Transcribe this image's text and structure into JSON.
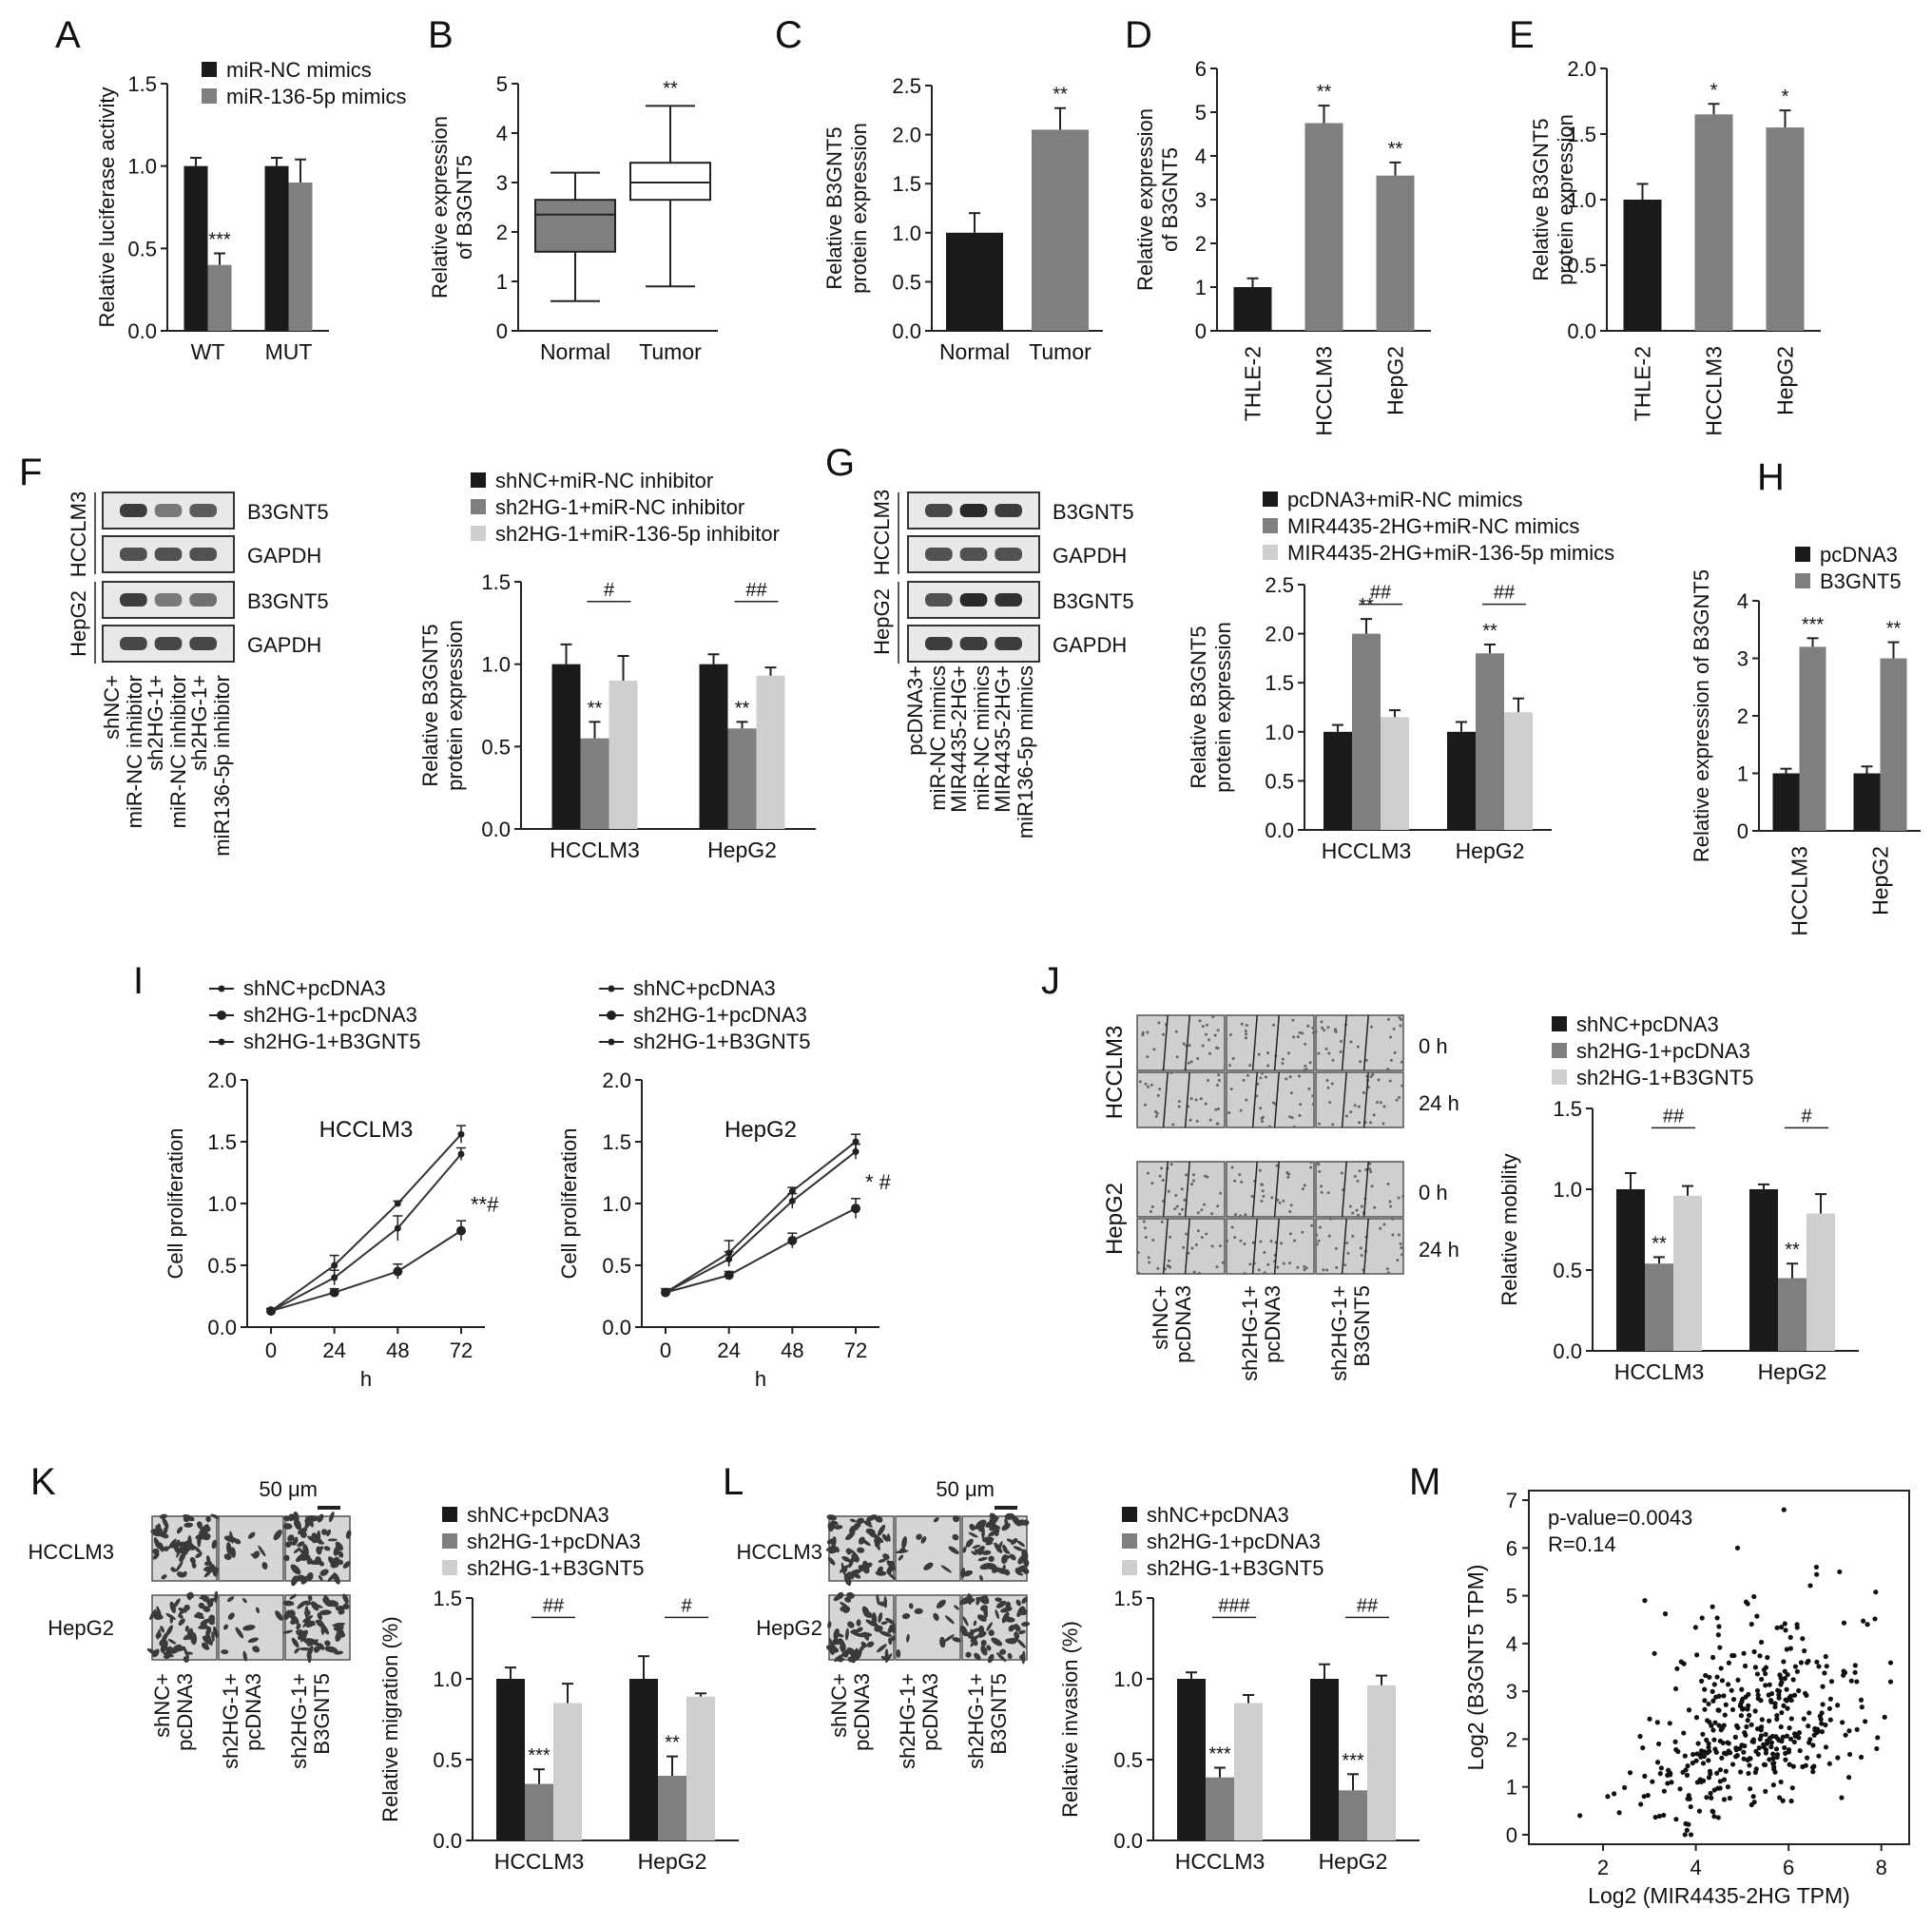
{
  "colors": {
    "dark": "#1a1a1a",
    "mid": "#7f7f7f",
    "light": "#cfcfcf",
    "box_normal": "#7f7f7f",
    "box_tumor": "#ffffff"
  },
  "chart_data": [
    {
      "panel": "A",
      "type": "bar",
      "categories": [
        "WT",
        "MUT"
      ],
      "series": [
        {
          "name": "miR-NC mimics",
          "values": [
            1.0,
            1.0
          ],
          "err": [
            0.05,
            0.05
          ]
        },
        {
          "name": "miR-136-5p mimics",
          "values": [
            0.4,
            0.9
          ],
          "err": [
            0.07,
            0.14
          ]
        }
      ],
      "ylabel": "Relative luciferase activity",
      "ylim": [
        0,
        1.5
      ],
      "yticks": [
        0.0,
        0.5,
        1.0,
        1.5
      ],
      "annotations": [
        {
          "cat": 0,
          "series": 1,
          "text": "***"
        }
      ]
    },
    {
      "panel": "B",
      "type": "box",
      "categories": [
        "Normal",
        "Tumor"
      ],
      "boxes": [
        {
          "min": 0.6,
          "q1": 1.6,
          "median": 2.35,
          "q3": 2.65,
          "max": 3.2
        },
        {
          "min": 0.9,
          "q1": 2.65,
          "median": 3.0,
          "q3": 3.4,
          "max": 4.55
        }
      ],
      "ylabel": "Relative expression of B3GNT5",
      "ylim": [
        0,
        5
      ],
      "yticks": [
        0,
        1,
        2,
        3,
        4,
        5
      ],
      "annotations": [
        {
          "cat": 1,
          "text": "**"
        }
      ]
    },
    {
      "panel": "C",
      "type": "bar",
      "categories": [
        "Normal",
        "Tumor"
      ],
      "values": [
        1.0,
        2.05
      ],
      "err": [
        0.2,
        0.22
      ],
      "ylabel": "Relative B3GNT5 protein expression",
      "ylim": [
        0,
        2.5
      ],
      "yticks": [
        0.0,
        0.5,
        1.0,
        1.5,
        2.0,
        2.5
      ],
      "annotations": [
        {
          "cat": 1,
          "text": "**"
        }
      ]
    },
    {
      "panel": "D",
      "type": "bar",
      "categories": [
        "THLE-2",
        "HCCLM3",
        "HepG2"
      ],
      "values": [
        1.0,
        4.75,
        3.55
      ],
      "err": [
        0.2,
        0.4,
        0.3
      ],
      "ylabel": "Relative expression of B3GNT5",
      "ylim": [
        0,
        6
      ],
      "yticks": [
        0,
        1,
        2,
        3,
        4,
        5,
        6
      ],
      "annotations": [
        {
          "cat": 1,
          "text": "**"
        },
        {
          "cat": 2,
          "text": "**"
        }
      ]
    },
    {
      "panel": "E",
      "type": "bar",
      "categories": [
        "THLE-2",
        "HCCLM3",
        "HepG2"
      ],
      "values": [
        1.0,
        1.65,
        1.55
      ],
      "err": [
        0.12,
        0.08,
        0.13
      ],
      "ylabel": "Relative B3GNT5 protein expression",
      "ylim": [
        0,
        2.0
      ],
      "yticks": [
        0.0,
        0.5,
        1.0,
        1.5,
        2.0
      ],
      "annotations": [
        {
          "cat": 1,
          "text": "*"
        },
        {
          "cat": 2,
          "text": "*"
        }
      ]
    },
    {
      "panel": "F",
      "type": "bar",
      "categories": [
        "HCCLM3",
        "HepG2"
      ],
      "series": [
        {
          "name": "shNC+miR-NC inhibitor",
          "values": [
            1.0,
            1.0
          ],
          "err": [
            0.12,
            0.06
          ]
        },
        {
          "name": "sh2HG-1+miR-NC inhibitor",
          "values": [
            0.55,
            0.61
          ],
          "err": [
            0.1,
            0.04
          ]
        },
        {
          "name": "sh2HG-1+miR-136-5p inhibitor",
          "values": [
            0.9,
            0.93
          ],
          "err": [
            0.15,
            0.05
          ]
        }
      ],
      "ylabel": "Relative B3GNT5 protein expression",
      "ylim": [
        0,
        1.5
      ],
      "yticks": [
        0.0,
        0.5,
        1.0,
        1.5
      ],
      "annotations": [
        {
          "cat": 0,
          "series": 1,
          "text": "**"
        },
        {
          "cat": 1,
          "series": 1,
          "text": "**"
        },
        {
          "cat": 0,
          "bracket": [
            1,
            2
          ],
          "text": "#"
        },
        {
          "cat": 1,
          "bracket": [
            1,
            2
          ],
          "text": "##"
        }
      ]
    },
    {
      "panel": "G",
      "type": "bar",
      "categories": [
        "HCCLM3",
        "HepG2"
      ],
      "series": [
        {
          "name": "pcDNA3+miR-NC mimics",
          "values": [
            1.0,
            1.0
          ],
          "err": [
            0.07,
            0.1
          ]
        },
        {
          "name": "MIR4435-2HG+miR-NC mimics",
          "values": [
            2.0,
            1.8
          ],
          "err": [
            0.15,
            0.09
          ]
        },
        {
          "name": "MIR4435-2HG+miR-136-5p mimics",
          "values": [
            1.15,
            1.2
          ],
          "err": [
            0.07,
            0.14
          ]
        }
      ],
      "ylabel": "Relative B3GNT5 protein expression",
      "ylim": [
        0,
        2.5
      ],
      "yticks": [
        0.0,
        0.5,
        1.0,
        1.5,
        2.0,
        2.5
      ],
      "annotations": [
        {
          "cat": 0,
          "series": 1,
          "text": "**"
        },
        {
          "cat": 1,
          "series": 1,
          "text": "**"
        },
        {
          "cat": 0,
          "bracket": [
            1,
            2
          ],
          "text": "##"
        },
        {
          "cat": 1,
          "bracket": [
            1,
            2
          ],
          "text": "##"
        }
      ]
    },
    {
      "panel": "H",
      "type": "bar",
      "categories": [
        "HCCLM3",
        "HepG2"
      ],
      "series": [
        {
          "name": "pcDNA3",
          "values": [
            1.0,
            1.0
          ],
          "err": [
            0.08,
            0.12
          ]
        },
        {
          "name": "B3GNT5",
          "values": [
            3.2,
            3.0
          ],
          "err": [
            0.15,
            0.28
          ]
        }
      ],
      "ylabel": "Relative expression of B3GNT5",
      "ylim": [
        0,
        4
      ],
      "yticks": [
        0,
        1,
        2,
        3,
        4
      ],
      "annotations": [
        {
          "cat": 0,
          "series": 1,
          "text": "***"
        },
        {
          "cat": 1,
          "series": 1,
          "text": "**"
        }
      ]
    },
    {
      "panel": "I1",
      "type": "line",
      "title": "HCCLM3",
      "x": [
        0,
        24,
        48,
        72
      ],
      "series": [
        {
          "name": "shNC+pcDNA3",
          "values": [
            0.13,
            0.5,
            1.0,
            1.56
          ],
          "err": [
            0.02,
            0.08,
            0.02,
            0.07
          ]
        },
        {
          "name": "sh2HG-1+pcDNA3",
          "values": [
            0.13,
            0.28,
            0.45,
            0.78
          ],
          "err": [
            0.02,
            0.03,
            0.06,
            0.08
          ]
        },
        {
          "name": "sh2HG-1+B3GNT5",
          "values": [
            0.13,
            0.4,
            0.8,
            1.4
          ],
          "err": [
            0.02,
            0.06,
            0.1,
            0.05
          ]
        }
      ],
      "xlabel": "h",
      "ylabel": "Cell proliferation",
      "ylim": [
        0,
        2.0
      ],
      "yticks": [
        0.0,
        0.5,
        1.0,
        1.5,
        2.0
      ],
      "annotations": [
        {
          "text": "**#"
        }
      ]
    },
    {
      "panel": "I2",
      "type": "line",
      "title": "HepG2",
      "x": [
        0,
        24,
        48,
        72
      ],
      "series": [
        {
          "name": "shNC+pcDNA3",
          "values": [
            0.28,
            0.6,
            1.1,
            1.5
          ],
          "err": [
            0.03,
            0.1,
            0.03,
            0.06
          ]
        },
        {
          "name": "sh2HG-1+pcDNA3",
          "values": [
            0.28,
            0.42,
            0.7,
            0.96
          ],
          "err": [
            0.03,
            0.03,
            0.06,
            0.08
          ]
        },
        {
          "name": "sh2HG-1+B3GNT5",
          "values": [
            0.28,
            0.55,
            1.02,
            1.42
          ],
          "err": [
            0.03,
            0.06,
            0.06,
            0.06
          ]
        }
      ],
      "xlabel": "h",
      "ylabel": "Cell proliferation",
      "ylim": [
        0,
        2.0
      ],
      "yticks": [
        0.0,
        0.5,
        1.0,
        1.5,
        2.0
      ],
      "annotations": [
        {
          "text": "* #"
        }
      ]
    },
    {
      "panel": "J",
      "type": "bar",
      "categories": [
        "HCCLM3",
        "HepG2"
      ],
      "series": [
        {
          "name": "shNC+pcDNA3",
          "values": [
            1.0,
            1.0
          ],
          "err": [
            0.1,
            0.03
          ]
        },
        {
          "name": "sh2HG-1+pcDNA3",
          "values": [
            0.54,
            0.45
          ],
          "err": [
            0.04,
            0.09
          ]
        },
        {
          "name": "sh2HG-1+B3GNT5",
          "values": [
            0.96,
            0.85
          ],
          "err": [
            0.06,
            0.12
          ]
        }
      ],
      "ylabel": "Relative mobility",
      "ylim": [
        0,
        1.5
      ],
      "yticks": [
        0.0,
        0.5,
        1.0,
        1.5
      ],
      "annotations": [
        {
          "cat": 0,
          "series": 1,
          "text": "**"
        },
        {
          "cat": 1,
          "series": 1,
          "text": "**"
        },
        {
          "cat": 0,
          "bracket": [
            1,
            2
          ],
          "text": "##"
        },
        {
          "cat": 1,
          "bracket": [
            1,
            2
          ],
          "text": "#"
        }
      ]
    },
    {
      "panel": "K",
      "type": "bar",
      "categories": [
        "HCCLM3",
        "HepG2"
      ],
      "series": [
        {
          "name": "shNC+pcDNA3",
          "values": [
            1.0,
            1.0
          ],
          "err": [
            0.07,
            0.14
          ]
        },
        {
          "name": "sh2HG-1+pcDNA3",
          "values": [
            0.35,
            0.4
          ],
          "err": [
            0.09,
            0.12
          ]
        },
        {
          "name": "sh2HG-1+B3GNT5",
          "values": [
            0.85,
            0.89
          ],
          "err": [
            0.12,
            0.02
          ]
        }
      ],
      "ylabel": "Relative migration (%)",
      "ylim": [
        0,
        1.5
      ],
      "yticks": [
        0.0,
        0.5,
        1.0,
        1.5
      ],
      "annotations": [
        {
          "cat": 0,
          "series": 1,
          "text": "***"
        },
        {
          "cat": 1,
          "series": 1,
          "text": "**"
        },
        {
          "cat": 0,
          "bracket": [
            1,
            2
          ],
          "text": "##"
        },
        {
          "cat": 1,
          "bracket": [
            1,
            2
          ],
          "text": "#"
        }
      ]
    },
    {
      "panel": "L",
      "type": "bar",
      "categories": [
        "HCCLM3",
        "HepG2"
      ],
      "series": [
        {
          "name": "shNC+pcDNA3",
          "values": [
            1.0,
            1.0
          ],
          "err": [
            0.04,
            0.09
          ]
        },
        {
          "name": "sh2HG-1+pcDNA3",
          "values": [
            0.39,
            0.31
          ],
          "err": [
            0.06,
            0.1
          ]
        },
        {
          "name": "sh2HG-1+B3GNT5",
          "values": [
            0.85,
            0.96
          ],
          "err": [
            0.05,
            0.06
          ]
        }
      ],
      "ylabel": "Relative invasion (%)",
      "ylim": [
        0,
        1.5
      ],
      "yticks": [
        0.0,
        0.5,
        1.0,
        1.5
      ],
      "annotations": [
        {
          "cat": 0,
          "series": 1,
          "text": "***"
        },
        {
          "cat": 1,
          "series": 1,
          "text": "***"
        },
        {
          "cat": 0,
          "bracket": [
            1,
            2
          ],
          "text": "###"
        },
        {
          "cat": 1,
          "bracket": [
            1,
            2
          ],
          "text": "##"
        }
      ]
    },
    {
      "panel": "M",
      "type": "scatter",
      "xlabel": "Log2 (MIR4435-2HG TPM)",
      "ylabel": "Log2 (B3GNT5 TPM)",
      "xlim": [
        0.4,
        8.6
      ],
      "ylim": [
        -0.2,
        7.2
      ],
      "xticks": [
        2,
        4,
        6,
        8
      ],
      "yticks": [
        0,
        1,
        2,
        3,
        4,
        5,
        6,
        7
      ],
      "annotations": [
        "p-value=0.0043",
        "R=0.14"
      ],
      "n_points": 420,
      "points_sample": [
        [
          5.9,
          6.8
        ],
        [
          4.9,
          6.0
        ],
        [
          2.9,
          4.9
        ],
        [
          7.1,
          5.5
        ],
        [
          6.6,
          5.6
        ],
        [
          7.7,
          4.4
        ],
        [
          8.2,
          3.2
        ],
        [
          7.9,
          1.8
        ],
        [
          7.3,
          1.2
        ],
        [
          1.5,
          0.4
        ],
        [
          2.1,
          0.8
        ],
        [
          3.2,
          1.9
        ],
        [
          4.5,
          2.6
        ],
        [
          5.2,
          2.3
        ],
        [
          5.8,
          3.0
        ],
        [
          6.4,
          3.6
        ]
      ]
    }
  ],
  "panels": {
    "letters": [
      "A",
      "B",
      "C",
      "D",
      "E",
      "F",
      "G",
      "H",
      "I",
      "J",
      "K",
      "L",
      "M"
    ],
    "blot_F": {
      "lines": [
        "HCCLM3",
        "HepG2"
      ],
      "proteins": [
        "B3GNT5",
        "GAPDH",
        "B3GNT5",
        "GAPDH"
      ],
      "lanes": [
        "shNC+\nmiR-NC inhibitor",
        "sh2HG-1+\nmiR-NC inhibitor",
        "sh2HG-1+\nmiR136-5p inhibitor"
      ]
    },
    "blot_G": {
      "lines": [
        "HCCLM3",
        "HepG2"
      ],
      "proteins": [
        "B3GNT5",
        "GAPDH",
        "B3GNT5",
        "GAPDH"
      ],
      "lanes": [
        "pcDNA3+\nmiR-NC mimics",
        "MIR4435-2HG+\nmiR-NC mimics",
        "MIR4435-2HG+\nmiR136-5p mimics"
      ]
    },
    "wound_J": {
      "rows": [
        "HCCLM3",
        "HepG2"
      ],
      "times": [
        "0 h",
        "24 h",
        "0 h",
        "24 h"
      ],
      "lanes": [
        "shNC+\npcDNA3",
        "sh2HG-1+\npcDNA3",
        "sh2HG-1+\nB3GNT5"
      ]
    },
    "transwell_K": {
      "rows": [
        "HCCLM3",
        "HepG2"
      ],
      "scale": "50 μm",
      "lanes": [
        "shNC+\npcDNA3",
        "sh2HG-1+\npcDNA3",
        "sh2HG-1+\nB3GNT5"
      ]
    },
    "transwell_L": {
      "rows": [
        "HCCLM3",
        "HepG2"
      ],
      "scale": "50 μm",
      "lanes": [
        "shNC+\npcDNA3",
        "sh2HG-1+\npcDNA3",
        "sh2HG-1+\nB3GNT5"
      ]
    }
  }
}
